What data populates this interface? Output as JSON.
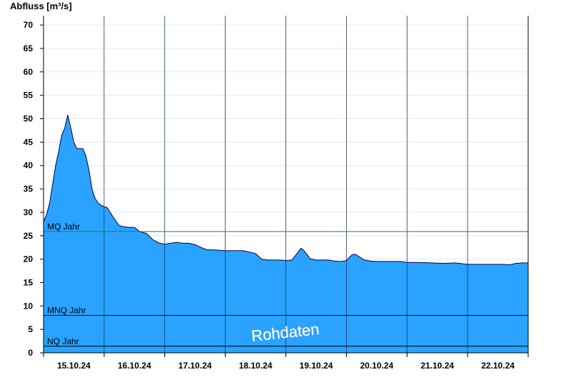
{
  "chart_data": {
    "type": "area",
    "ylabel": "Abfluss [m³/s]",
    "ylim": [
      0,
      72
    ],
    "yticks": [
      0,
      5,
      10,
      15,
      20,
      25,
      30,
      35,
      40,
      45,
      50,
      55,
      60,
      65,
      70
    ],
    "xlim": [
      0,
      8
    ],
    "categories": [
      "15.10.24",
      "16.10.24",
      "17.10.24",
      "18.10.24",
      "19.10.24",
      "20.10.24",
      "21.10.24",
      "22.10.24"
    ],
    "grid": true,
    "watermark": "Rohdaten",
    "colors": {
      "fill": "#29a3ff",
      "outline": "#00004a",
      "mq": "#2e7d32",
      "ref": "#000000",
      "grid": "#e6e6e6"
    },
    "reference_lines": [
      {
        "label": "MQ Jahr",
        "value": 25.9
      },
      {
        "label": "MNQ Jahr",
        "value": 8.0
      },
      {
        "label": "NQ Jahr",
        "value": 1.4
      }
    ],
    "series": [
      {
        "x": [
          0,
          0.05,
          0.1,
          0.15,
          0.2,
          0.25,
          0.3,
          0.35,
          0.4,
          0.45,
          0.5,
          0.55,
          0.6,
          0.65,
          0.7,
          0.75,
          0.8,
          0.85,
          0.9,
          0.95,
          1.0,
          1.05,
          1.1,
          1.15,
          1.2,
          1.25,
          1.3,
          1.4,
          1.5,
          1.6,
          1.7,
          1.8,
          1.9,
          2.0,
          2.1,
          2.2,
          2.3,
          2.4,
          2.5,
          2.6,
          2.7,
          2.8,
          2.9,
          3.0,
          3.1,
          3.2,
          3.3,
          3.4,
          3.5,
          3.6,
          3.7,
          3.8,
          3.9,
          4.0,
          4.1,
          4.2,
          4.25,
          4.3,
          4.35,
          4.4,
          4.5,
          4.6,
          4.7,
          4.8,
          4.9,
          5.0,
          5.05,
          5.1,
          5.15,
          5.2,
          5.3,
          5.4,
          5.5,
          5.6,
          5.7,
          5.8,
          5.9,
          6.0,
          6.2,
          6.4,
          6.6,
          6.8,
          7.0,
          7.2,
          7.4,
          7.6,
          7.7,
          7.8,
          7.9,
          8.0
        ],
        "values": [
          28,
          29.5,
          32,
          36,
          40,
          43,
          46.5,
          48,
          50.8,
          48,
          45,
          43.6,
          43.6,
          43.6,
          42,
          39,
          35,
          33,
          32,
          31.5,
          31.2,
          31,
          30,
          29,
          28,
          27.2,
          27,
          26.8,
          26.8,
          25.8,
          25.5,
          24.2,
          23.5,
          23.2,
          23.4,
          23.6,
          23.4,
          23.4,
          23.1,
          22.5,
          22.0,
          22.0,
          21.9,
          21.8,
          21.8,
          21.8,
          21.8,
          21.5,
          21.2,
          20.0,
          19.8,
          19.8,
          19.8,
          19.7,
          19.8,
          21.5,
          22.3,
          21.8,
          21.0,
          20.1,
          19.8,
          19.8,
          19.8,
          19.6,
          19.5,
          19.7,
          20.4,
          21.0,
          21.0,
          20.6,
          19.8,
          19.6,
          19.5,
          19.5,
          19.5,
          19.5,
          19.5,
          19.3,
          19.3,
          19.2,
          19.1,
          19.2,
          18.9,
          18.9,
          18.9,
          18.9,
          18.8,
          19.1,
          19.2,
          19.2
        ]
      }
    ]
  }
}
